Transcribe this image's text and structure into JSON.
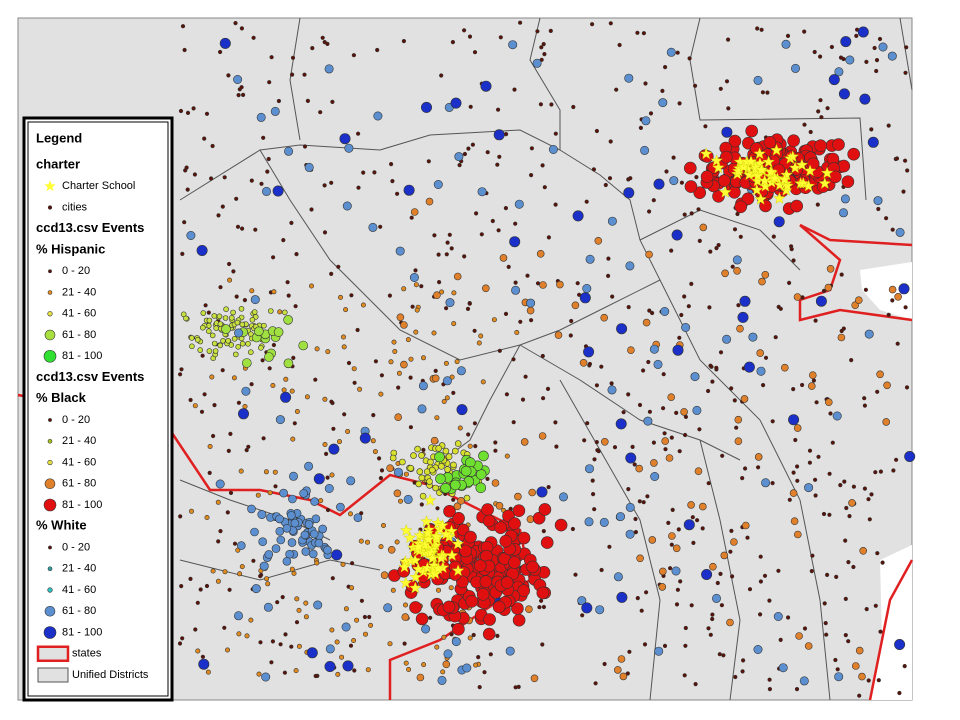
{
  "legend": {
    "title": "Legend",
    "groups": [
      {
        "heading": "charter",
        "items": [
          "Charter School",
          "cities"
        ]
      },
      {
        "heading": "ccd13.csv Events",
        "subheading": "% Hispanic",
        "items": [
          "0 - 20",
          "21 - 40",
          "41 - 60",
          "61 - 80",
          "81 - 100"
        ]
      },
      {
        "heading": "ccd13.csv Events",
        "subheading": "% Black",
        "items": [
          "0 - 20",
          "21 - 40",
          "41 - 60",
          "61 - 80",
          "81 - 100"
        ]
      },
      {
        "subheading": "% White",
        "items": [
          "0 - 20",
          "21 - 40",
          "41 - 60",
          "61 - 80",
          "81 - 100"
        ]
      },
      {
        "items": [
          "states",
          "Unified Districts"
        ]
      }
    ]
  }
}
